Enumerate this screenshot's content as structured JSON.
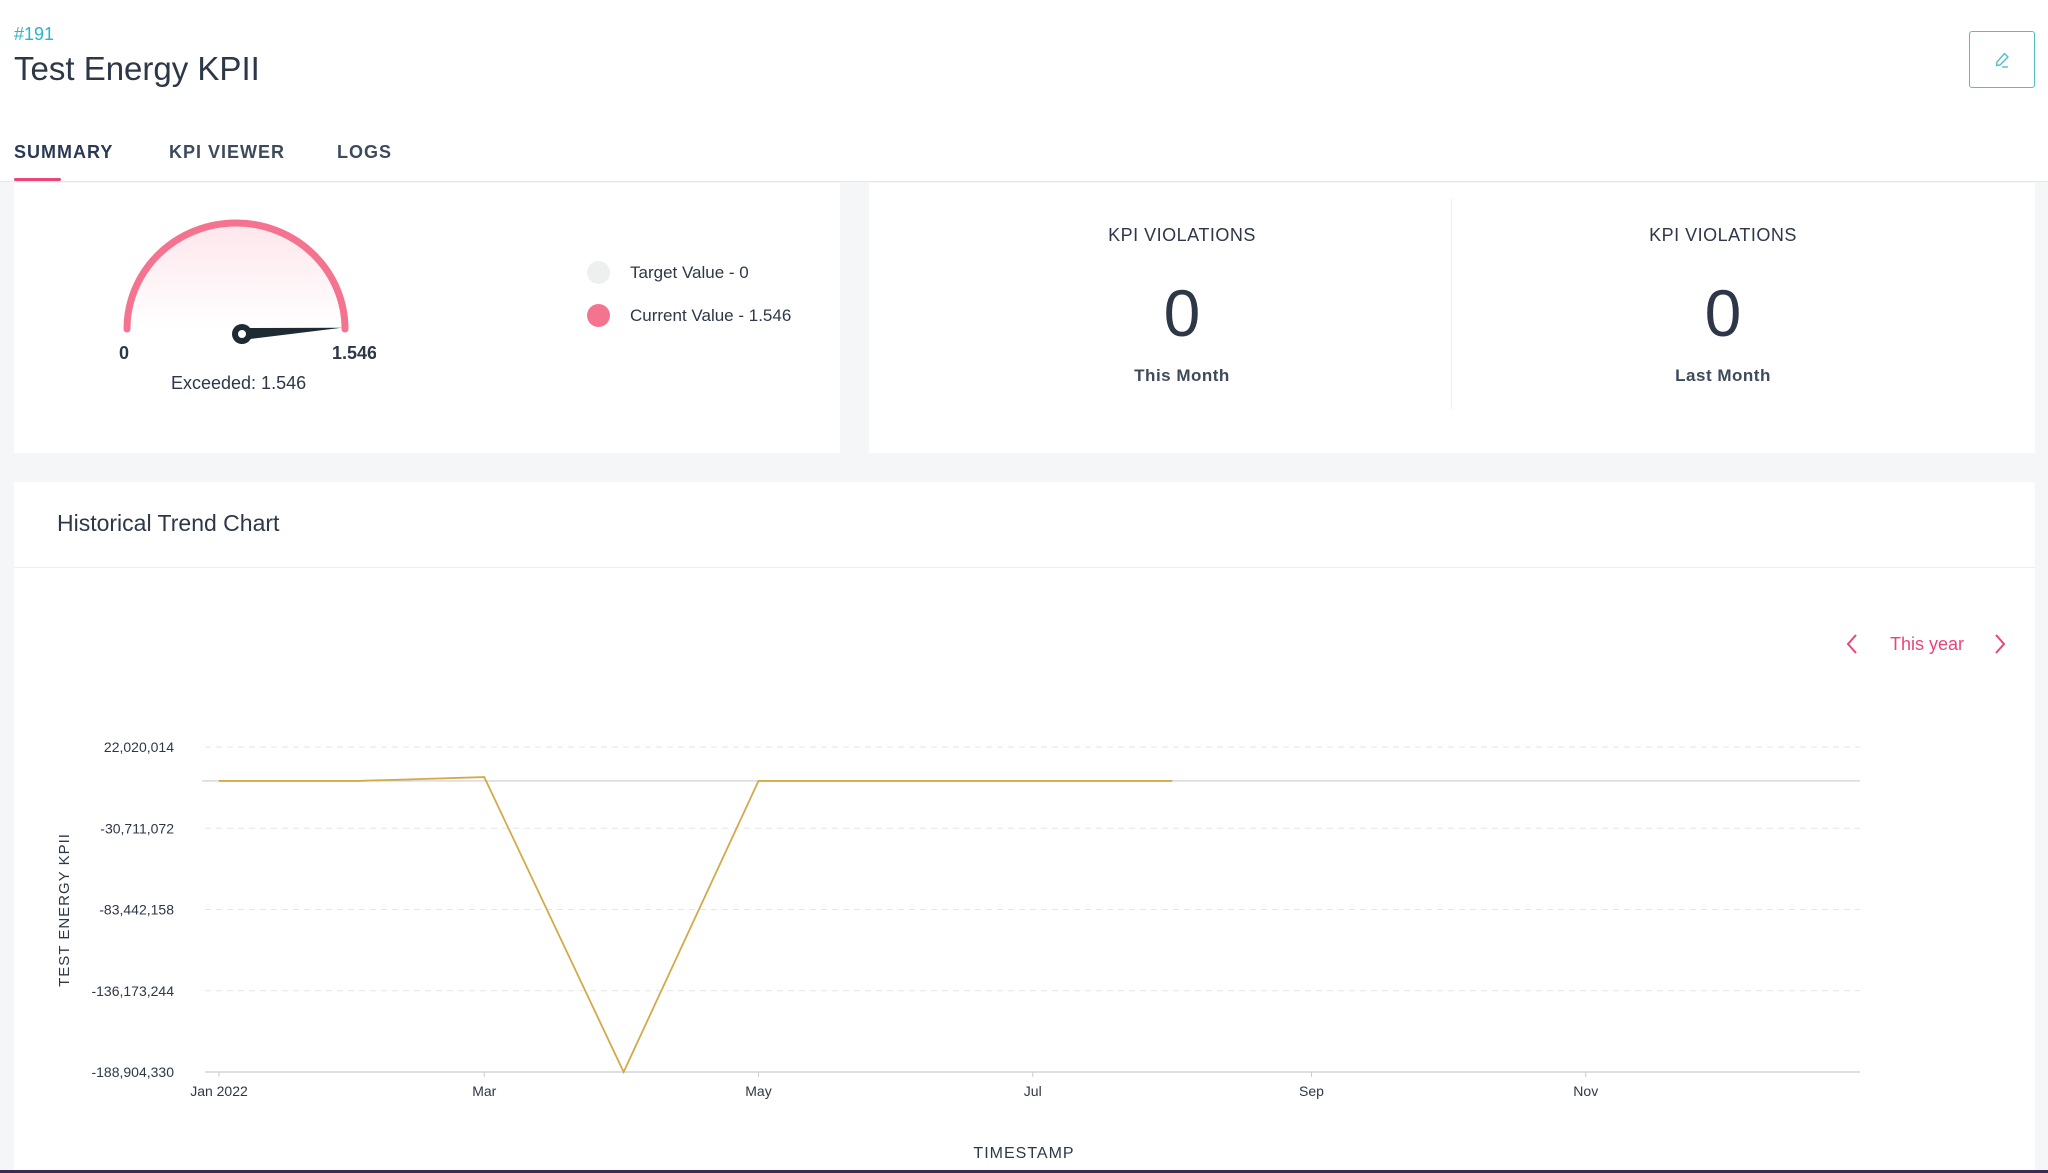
{
  "header": {
    "id_label": "#191",
    "title": "Test Energy KPII",
    "edit_icon": "pencil-icon"
  },
  "tabs": [
    {
      "label": "SUMMARY",
      "active": true
    },
    {
      "label": "KPI VIEWER",
      "active": false
    },
    {
      "label": "LOGS",
      "active": false
    }
  ],
  "gauge": {
    "min_label": "0",
    "max_label": "1.546",
    "exceeded_text": "Exceeded: 1.546",
    "value_fraction": 0.98,
    "arc_color": "#f4738f",
    "legend": [
      {
        "label": "Target Value - 0",
        "color": "#eef0f0"
      },
      {
        "label": "Current Value - 1.546",
        "color": "#f4738f"
      }
    ]
  },
  "violations": [
    {
      "title": "KPI VIOLATIONS",
      "count": "0",
      "period": "This Month"
    },
    {
      "title": "KPI VIOLATIONS",
      "count": "0",
      "period": "Last Month"
    }
  ],
  "trend": {
    "title": "Historical Trend Chart",
    "range_label": "This year",
    "prev_icon": "chevron-left-icon",
    "next_icon": "chevron-right-icon",
    "accent_color": "#e8457a"
  },
  "chart_data": {
    "type": "line",
    "xlabel": "TIMESTAMP",
    "ylabel": "TEST ENERGY KPII",
    "ylim": [
      -188904330,
      22020014
    ],
    "y_ticks": [
      "22,020,014",
      "-30,711,072",
      "-83,442,158",
      "-136,173,244",
      "-188,904,330"
    ],
    "x_ticks": [
      "Jan 2022",
      "Mar",
      "May",
      "Jul",
      "Sep",
      "Nov"
    ],
    "grid": true,
    "series": [
      {
        "color": "#d4a94a",
        "x": [
          "2022-01-01",
          "2022-02-01",
          "2022-03-01",
          "2022-04-01",
          "2022-05-01",
          "2022-06-01",
          "2022-07-01",
          "2022-08-01"
        ],
        "values": [
          0,
          0,
          2500000,
          -188904330,
          0,
          0,
          0,
          0
        ]
      }
    ]
  }
}
